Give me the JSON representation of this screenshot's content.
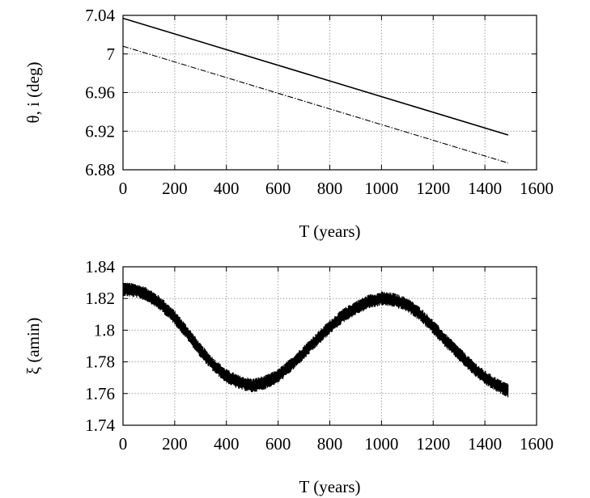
{
  "chart_data": [
    {
      "type": "line",
      "title": "",
      "xlabel": "T (years)",
      "ylabel": "θ, i (deg)",
      "xlim": [
        0,
        1600
      ],
      "ylim": [
        6.88,
        7.04
      ],
      "xticks": [
        "0",
        "200",
        "400",
        "600",
        "800",
        "1000",
        "1200",
        "1400",
        "1600"
      ],
      "yticks": [
        "6.88",
        "6.92",
        "6.96",
        "7",
        "7.04"
      ],
      "grid": true,
      "legend": "none",
      "series": [
        {
          "style": "solid",
          "color": "#000000",
          "x": [
            0,
            1490
          ],
          "y": [
            7.037,
            6.916
          ]
        },
        {
          "style": "dash-dot",
          "color": "#000000",
          "x": [
            0,
            1490
          ],
          "y": [
            7.008,
            6.887
          ]
        }
      ]
    },
    {
      "type": "line",
      "title": "",
      "xlabel": "T (years)",
      "ylabel": "ξ (amin)",
      "xlim": [
        0,
        1600
      ],
      "ylim": [
        1.74,
        1.84
      ],
      "xticks": [
        "0",
        "200",
        "400",
        "600",
        "800",
        "1000",
        "1200",
        "1400",
        "1600"
      ],
      "yticks": [
        "1.74",
        "1.76",
        "1.78",
        "1.8",
        "1.82",
        "1.84"
      ],
      "grid": true,
      "legend": "none",
      "series": [
        {
          "style": "solid-oscillating",
          "color": "#000000",
          "oscillation_amplitude": 0.0045,
          "x": [
            0,
            50,
            100,
            150,
            200,
            250,
            300,
            350,
            400,
            450,
            500,
            550,
            600,
            650,
            700,
            750,
            800,
            850,
            900,
            950,
            1000,
            1050,
            1100,
            1150,
            1200,
            1250,
            1300,
            1350,
            1400,
            1450,
            1490
          ],
          "y": [
            1.826,
            1.825,
            1.822,
            1.816,
            1.808,
            1.798,
            1.787,
            1.778,
            1.771,
            1.767,
            1.765,
            1.767,
            1.771,
            1.778,
            1.786,
            1.794,
            1.802,
            1.809,
            1.814,
            1.818,
            1.82,
            1.819,
            1.816,
            1.81,
            1.802,
            1.793,
            1.785,
            1.777,
            1.77,
            1.765,
            1.762
          ]
        }
      ]
    }
  ]
}
